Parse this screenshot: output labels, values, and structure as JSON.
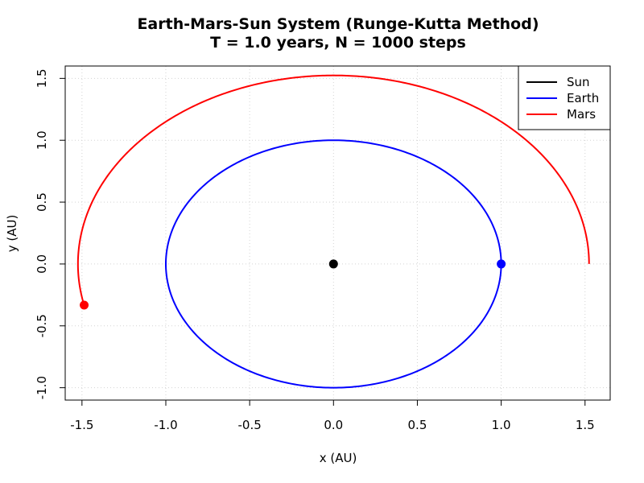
{
  "chart_data": {
    "type": "scatter",
    "title": "Earth-Mars-Sun System (Runge-Kutta Method)",
    "subtitle": "T = 1.0 years, N = 1000 steps",
    "xlabel": "x (AU)",
    "ylabel": "y (AU)",
    "xlim": [
      -1.6,
      1.65
    ],
    "ylim": [
      -1.1,
      1.6
    ],
    "x_ticks": [
      -1.5,
      -1.0,
      -0.5,
      0.0,
      0.5,
      1.0,
      1.5
    ],
    "y_ticks": [
      -1.0,
      -0.5,
      0.0,
      0.5,
      1.0,
      1.5
    ],
    "x_tick_labels": [
      "-1.5",
      "-1.0",
      "-0.5",
      "0.0",
      "0.5",
      "1.0",
      "1.5"
    ],
    "y_tick_labels": [
      "-1.0",
      "-0.5",
      "0.0",
      "0.5",
      "1.0",
      "1.5"
    ],
    "grid": true,
    "legend_position": "top-right",
    "series": [
      {
        "name": "Sun",
        "color": "#000000",
        "radius": 0,
        "start_deg": 0,
        "end_deg": 0,
        "final_point": [
          0.0,
          0.0
        ]
      },
      {
        "name": "Earth",
        "color": "#0000ff",
        "radius": 1.0,
        "start_deg": 0,
        "end_deg": 360,
        "final_point": [
          1.0,
          0.0
        ]
      },
      {
        "name": "Mars",
        "color": "#ff0000",
        "radius": 1.524,
        "start_deg": 0,
        "end_deg": 192.6,
        "final_point": [
          -1.487,
          -0.332
        ]
      }
    ]
  }
}
